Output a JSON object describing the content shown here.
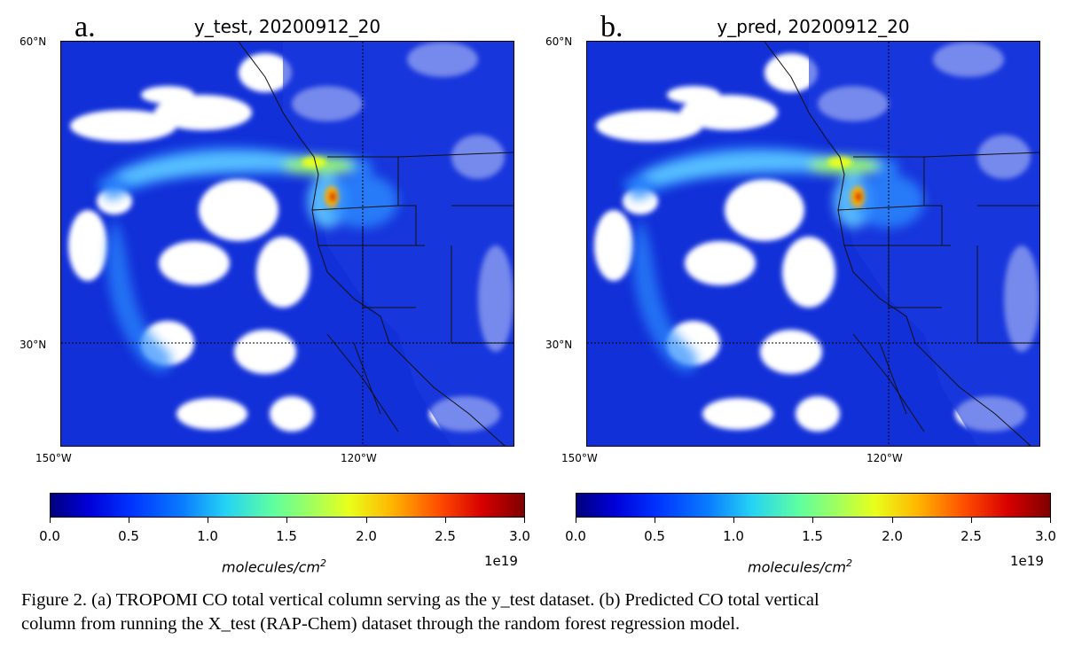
{
  "panels": [
    {
      "letter": "a.",
      "title": "y_test, 20200912_20",
      "lat_labels": [
        "60°N",
        "30°N"
      ],
      "lon_labels": [
        "150°W",
        "120°W"
      ],
      "colorbar": {
        "ticks": [
          "0.0",
          "0.5",
          "1.0",
          "1.5",
          "2.0",
          "2.5",
          "3.0"
        ],
        "label": "molecules/cm",
        "label_sup": "2",
        "exponent": "1e19"
      }
    },
    {
      "letter": "b.",
      "title": "y_pred, 20200912_20",
      "lat_labels": [
        "60°N",
        "30°N"
      ],
      "lon_labels": [
        "150°W",
        "120°W"
      ],
      "colorbar": {
        "ticks": [
          "0.0",
          "0.5",
          "1.0",
          "1.5",
          "2.0",
          "2.5",
          "3.0"
        ],
        "label": "molecules/cm",
        "label_sup": "2",
        "exponent": "1e19"
      }
    }
  ],
  "colormap": {
    "name": "jet",
    "background_ocean": "#1230d8",
    "no_data": "#ffffff",
    "plume_mid": "#5ec8ff",
    "plume_high": "#e8ff1b",
    "plume_peak": "#d80000"
  },
  "caption": {
    "line1": "Figure 2. (a) TROPOMI CO total vertical column serving as the y_test dataset. (b) Predicted CO total vertical",
    "line2": "column from running the X_test (RAP-Chem) dataset through the random forest regression model."
  }
}
